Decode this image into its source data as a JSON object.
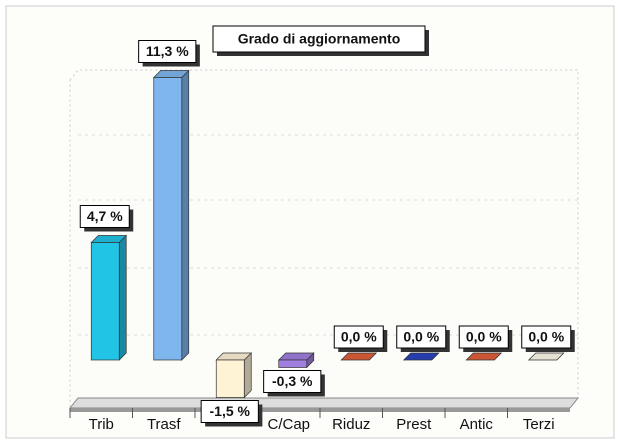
{
  "chart_data": {
    "type": "bar3d",
    "title": "Grado di aggiornamento",
    "categories": [
      "Trib",
      "Trasf",
      null,
      "C/Cap",
      "Riduz",
      "Prest",
      "Antic",
      "Terzi"
    ],
    "values": [
      4.7,
      11.3,
      -1.5,
      -0.3,
      0,
      0,
      0,
      0
    ],
    "value_labels": [
      "4,7 %",
      "11,3 %",
      "-1,5 %",
      "-0,3 %",
      "0,0 %",
      "0,0 %",
      "0,0 %",
      "0,0 %"
    ],
    "colors": [
      "#22c4e6",
      "#7fb6ee",
      "#fff3d6",
      "#a07fe0",
      "#e0603c",
      "#2a44c0",
      "#e0603c",
      "#fffbe8"
    ],
    "ylim": [
      -1.8,
      11.6
    ]
  }
}
